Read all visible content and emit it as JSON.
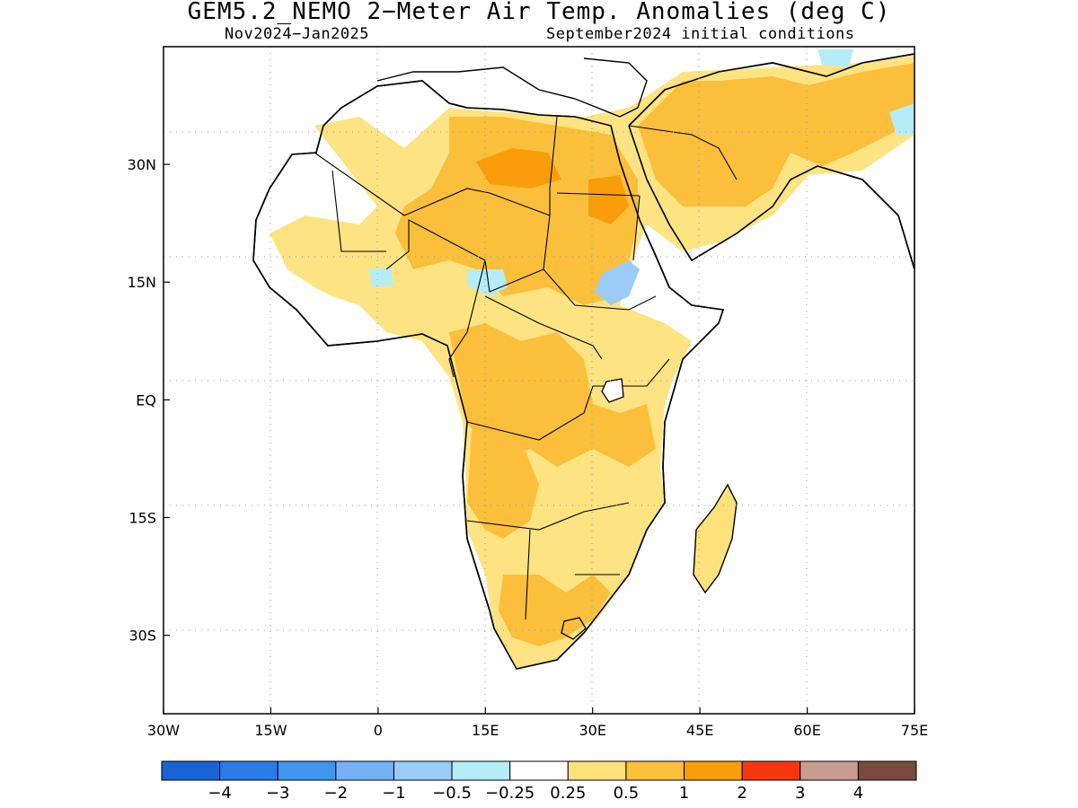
{
  "title": "GEM5.2_NEMO 2−Meter Air Temp. Anomalies (deg C)",
  "subtitle_left": "Nov2024−Jan2025",
  "subtitle_right": "September2024 initial conditions",
  "map": {
    "lon_range": [
      -30,
      75
    ],
    "lat_range": [
      -40,
      45
    ],
    "x_ticks": [
      {
        "value": -30,
        "label": "30W"
      },
      {
        "value": -15,
        "label": "15W"
      },
      {
        "value": 0,
        "label": "0"
      },
      {
        "value": 15,
        "label": "15E"
      },
      {
        "value": 30,
        "label": "30E"
      },
      {
        "value": 45,
        "label": "45E"
      },
      {
        "value": 60,
        "label": "60E"
      },
      {
        "value": 75,
        "label": "75E"
      }
    ],
    "y_ticks": [
      {
        "value": 30,
        "label": "30N"
      },
      {
        "value": 15,
        "label": "15N"
      },
      {
        "value": 0,
        "label": "EQ"
      },
      {
        "value": -15,
        "label": "15S"
      },
      {
        "value": -30,
        "label": "30S"
      }
    ],
    "grid": "dotted"
  },
  "colorbar": {
    "colors": [
      "#1a63d4",
      "#2a7ae8",
      "#3f95f0",
      "#74b2f5",
      "#9bcbf7",
      "#b5ecf8",
      "#ffffff",
      "#fde27b",
      "#fbbf3c",
      "#f99e0a",
      "#f53710",
      "#c89c90",
      "#7a4a3e"
    ],
    "labels": [
      "−4",
      "−3",
      "−2",
      "−1",
      "−0.5",
      "−0.25",
      "0.25",
      "0.5",
      "1",
      "2",
      "3",
      "4"
    ]
  }
}
